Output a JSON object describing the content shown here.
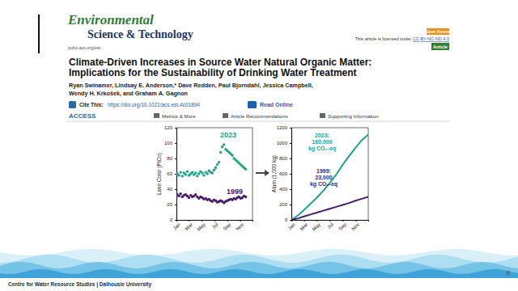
{
  "header": {
    "journal_line1": "Environmental",
    "journal_line2": "Science & Technology",
    "url": "pubs.acs.org/est",
    "license_prefix": "This article is licensed under",
    "license": "CC-BY-NC-ND 4.0",
    "open_access": "Open Access",
    "article_type": "Article"
  },
  "paper": {
    "title_lines": [
      "Climate-Driven Increases in Source Water Natural Organic Matter:",
      "Implications for the Sustainability of Drinking Water Treatment"
    ],
    "author_lines": [
      "Ryan Swinamer, Lindsay E. Anderson,* Dave Redden, Paul Bjorndahl, Jessica Campbell,",
      "Wendy H. Krkošek, and Graham A. Gagnon"
    ],
    "cite_label": "Cite This:",
    "doi": "https://doi.org/10.1021/acs.est.4c01894",
    "read_online": "Read Online",
    "access": "ACCESS",
    "links": [
      "Metrics & More",
      "Article Recommendations",
      "Supporting Information"
    ]
  },
  "chart_data": [
    {
      "type": "scatter",
      "y_label": "Lake Color (PtCo)",
      "marker": "circle",
      "x": [
        4,
        12,
        20,
        28,
        36,
        44,
        52,
        60,
        68,
        76,
        84,
        92,
        100,
        108,
        116,
        124,
        132,
        140,
        148,
        156,
        164,
        172,
        180,
        188,
        196,
        204,
        212,
        220,
        228,
        236,
        244,
        252,
        260,
        268,
        276,
        284,
        292,
        300,
        308,
        316,
        324,
        332
      ],
      "xlim": [
        0,
        365
      ],
      "xticks": [
        {
          "value": 1,
          "label": "Jan"
        },
        {
          "value": 60,
          "label": "Mar"
        },
        {
          "value": 121,
          "label": "May"
        },
        {
          "value": 182,
          "label": "Jul"
        },
        {
          "value": 244,
          "label": "Sep"
        },
        {
          "value": 305,
          "label": "Nov"
        }
      ],
      "ylim": [
        0,
        120
      ],
      "yticks": [
        0,
        20,
        40,
        60,
        80,
        100,
        120
      ],
      "series": [
        {
          "name": "2023",
          "color": "#1fa385",
          "values": [
            60,
            58,
            62,
            57,
            61,
            59,
            63,
            58,
            60,
            62,
            59,
            61,
            57,
            60,
            63,
            61,
            58,
            62,
            60,
            64,
            62,
            61,
            65,
            68,
            72,
            75,
            88,
            95,
            98,
            92,
            90,
            88,
            86,
            84,
            80,
            78,
            76,
            74,
            72,
            70,
            68,
            66
          ]
        },
        {
          "name": "1999",
          "color": "#4a1a6b",
          "values": [
            33,
            31,
            34,
            30,
            32,
            33,
            31,
            29,
            32,
            30,
            31,
            33,
            30,
            28,
            30,
            29,
            27,
            28,
            26,
            27,
            25,
            24,
            26,
            25,
            23,
            24,
            25,
            24,
            22,
            24,
            25,
            26,
            27,
            26,
            28,
            27,
            29,
            30,
            28,
            29,
            31,
            30
          ]
        }
      ]
    },
    {
      "type": "line",
      "y_label": "Alum (1,000 kg)",
      "line_style": "solid",
      "x": [
        1,
        32,
        60,
        91,
        121,
        152,
        182,
        213,
        244,
        274,
        305,
        335,
        365
      ],
      "xlim": [
        0,
        365
      ],
      "xticks": [
        {
          "value": 1,
          "label": "Jan"
        },
        {
          "value": 60,
          "label": "Mar"
        },
        {
          "value": 121,
          "label": "May"
        },
        {
          "value": 182,
          "label": "Jul"
        },
        {
          "value": 244,
          "label": "Sep"
        },
        {
          "value": 305,
          "label": "Nov"
        }
      ],
      "ylim": [
        0,
        1200
      ],
      "yticks": [
        0,
        200,
        400,
        600,
        800,
        1000,
        1200
      ],
      "series": [
        {
          "color": "#1fa385",
          "values": [
            0,
            60,
            130,
            210,
            290,
            380,
            480,
            590,
            720,
            830,
            940,
            1040,
            1110
          ]
        },
        {
          "color": "#4a1a6b",
          "values": [
            0,
            20,
            45,
            70,
            95,
            120,
            145,
            170,
            195,
            220,
            250,
            275,
            300
          ]
        }
      ],
      "annotations": [
        [
          "2023:",
          "160,000",
          "kg CO₂-eq"
        ],
        [
          "1999:",
          "23,000",
          "kg CO₂-eq"
        ]
      ]
    }
  ],
  "slide": {
    "footer": "Centre for Water Resource Studies | Dalhousie University",
    "page_number": 8
  }
}
